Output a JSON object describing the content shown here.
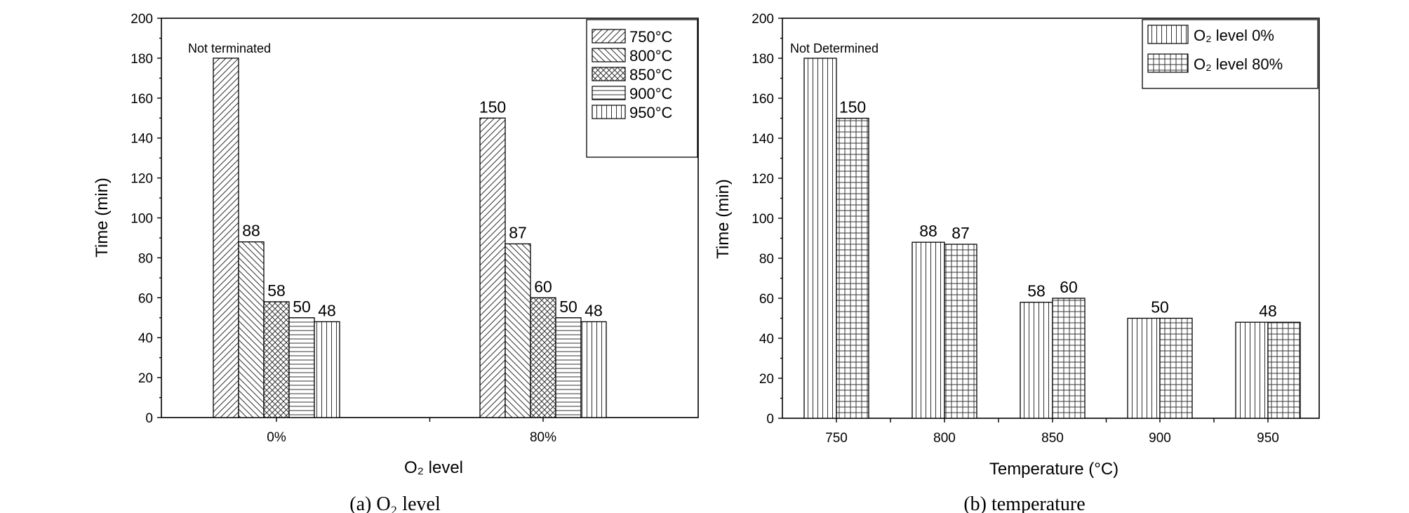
{
  "chart_data": [
    {
      "id": "a",
      "type": "bar",
      "caption": "(a) O₂ level",
      "xlabel": "O₂ level",
      "ylabel": "Time (min)",
      "ylim": [
        0,
        200
      ],
      "yticks": [
        "0",
        "20",
        "40",
        "60",
        "80",
        "100",
        "120",
        "140",
        "160",
        "180",
        "200"
      ],
      "categories": [
        "0%",
        "80%"
      ],
      "series": [
        {
          "name": "750°C",
          "pattern": "diag-fwd",
          "values": [
            180,
            150
          ],
          "labels": [
            "Not terminated",
            "150"
          ]
        },
        {
          "name": "800°C",
          "pattern": "diag-back",
          "values": [
            88,
            87
          ],
          "labels": [
            "88",
            "87"
          ]
        },
        {
          "name": "850°C",
          "pattern": "cross",
          "values": [
            58,
            60
          ],
          "labels": [
            "58",
            "60"
          ]
        },
        {
          "name": "900°C",
          "pattern": "horiz",
          "values": [
            50,
            50
          ],
          "labels": [
            "50",
            "50"
          ]
        },
        {
          "name": "950°C",
          "pattern": "vert",
          "values": [
            48,
            48
          ],
          "labels": [
            "48",
            "48"
          ]
        }
      ],
      "legend": "top-right"
    },
    {
      "id": "b",
      "type": "bar",
      "caption": "(b) temperature",
      "xlabel": "Temperature (°C)",
      "ylabel": "Time (min)",
      "ylim": [
        0,
        200
      ],
      "yticks": [
        "0",
        "20",
        "40",
        "60",
        "80",
        "100",
        "120",
        "140",
        "160",
        "180",
        "200"
      ],
      "categories": [
        "750",
        "800",
        "850",
        "900",
        "950"
      ],
      "series": [
        {
          "name": "O₂ level 0%",
          "pattern": "vert",
          "values": [
            180,
            88,
            58,
            50,
            48
          ]
        },
        {
          "name": "O₂ level 80%",
          "pattern": "grid",
          "values": [
            150,
            87,
            60,
            50,
            48
          ]
        }
      ],
      "bar_labels": [
        {
          "category": 0,
          "series": 0,
          "text": "Not Determined"
        },
        {
          "category": 0,
          "series": 1,
          "text": "150"
        },
        {
          "category": 1,
          "series": 0,
          "text": "88"
        },
        {
          "category": 1,
          "series": 1,
          "text": "87"
        },
        {
          "category": 2,
          "series": 0,
          "text": "58"
        },
        {
          "category": 2,
          "series": 1,
          "text": "60"
        },
        {
          "category": 3,
          "series": "both",
          "text": "50"
        },
        {
          "category": 4,
          "series": "both",
          "text": "48"
        }
      ],
      "legend": "top-right"
    }
  ]
}
